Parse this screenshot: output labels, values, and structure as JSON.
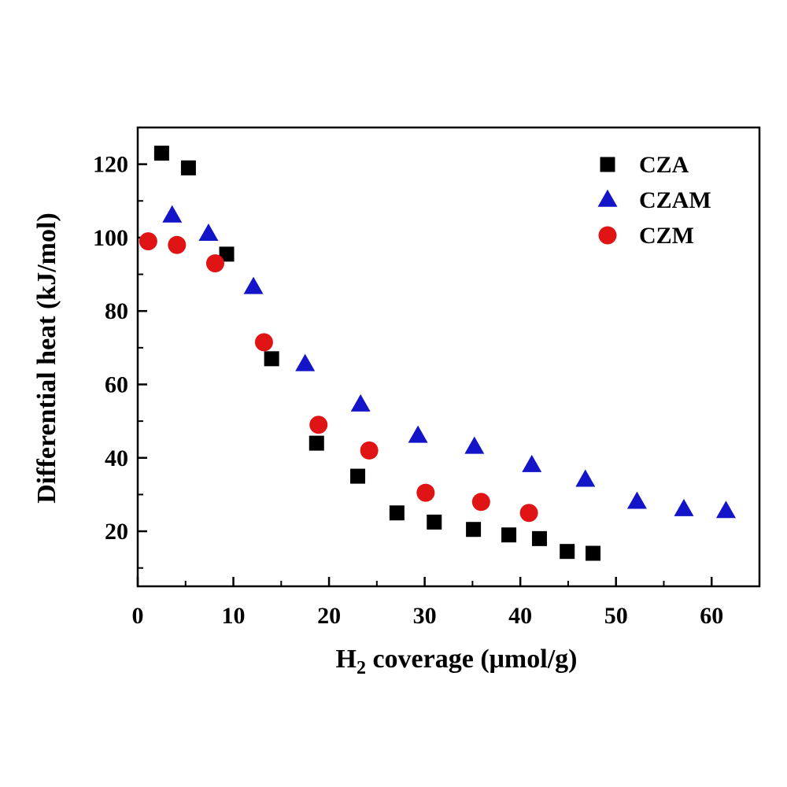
{
  "chart_data": {
    "type": "scatter",
    "title": "",
    "xlabel_main": "H",
    "xlabel_sub": "2",
    "xlabel_rest": " coverage (μmol/g)",
    "ylabel": "Differential heat (kJ/mol)",
    "xlim": [
      0,
      65
    ],
    "ylim": [
      5,
      130
    ],
    "x_ticks": [
      "0",
      "10",
      "20",
      "30",
      "40",
      "50",
      "60"
    ],
    "y_ticks": [
      "20",
      "40",
      "60",
      "80",
      "100",
      "120"
    ],
    "grid": false,
    "legend_position": "top-right",
    "series": [
      {
        "name": "CZA",
        "marker": "square",
        "color": "#000000",
        "points": [
          [
            2.5,
            123
          ],
          [
            5.3,
            119
          ],
          [
            9.3,
            95.5
          ],
          [
            14.0,
            67
          ],
          [
            18.7,
            44
          ],
          [
            23.0,
            35
          ],
          [
            27.1,
            25
          ],
          [
            31.0,
            22.5
          ],
          [
            35.1,
            20.5
          ],
          [
            38.8,
            19
          ],
          [
            42.0,
            18
          ],
          [
            44.9,
            14.5
          ],
          [
            47.6,
            14
          ]
        ]
      },
      {
        "name": "CZAM",
        "marker": "triangle",
        "color": "#1414c8",
        "points": [
          [
            3.6,
            106
          ],
          [
            7.4,
            101
          ],
          [
            12.1,
            86.5
          ],
          [
            17.5,
            65.5
          ],
          [
            23.3,
            54.5
          ],
          [
            29.3,
            46
          ],
          [
            35.2,
            43
          ],
          [
            41.2,
            38
          ],
          [
            46.8,
            34
          ],
          [
            52.2,
            28
          ],
          [
            57.1,
            26
          ],
          [
            61.5,
            25.5
          ]
        ]
      },
      {
        "name": "CZM",
        "marker": "circle",
        "color": "#e01414",
        "points": [
          [
            1.1,
            99
          ],
          [
            4.1,
            98
          ],
          [
            8.1,
            93
          ],
          [
            13.2,
            71.5
          ],
          [
            18.9,
            49
          ],
          [
            24.2,
            42
          ],
          [
            30.1,
            30.5
          ],
          [
            35.9,
            28
          ],
          [
            40.9,
            25
          ]
        ]
      }
    ]
  }
}
